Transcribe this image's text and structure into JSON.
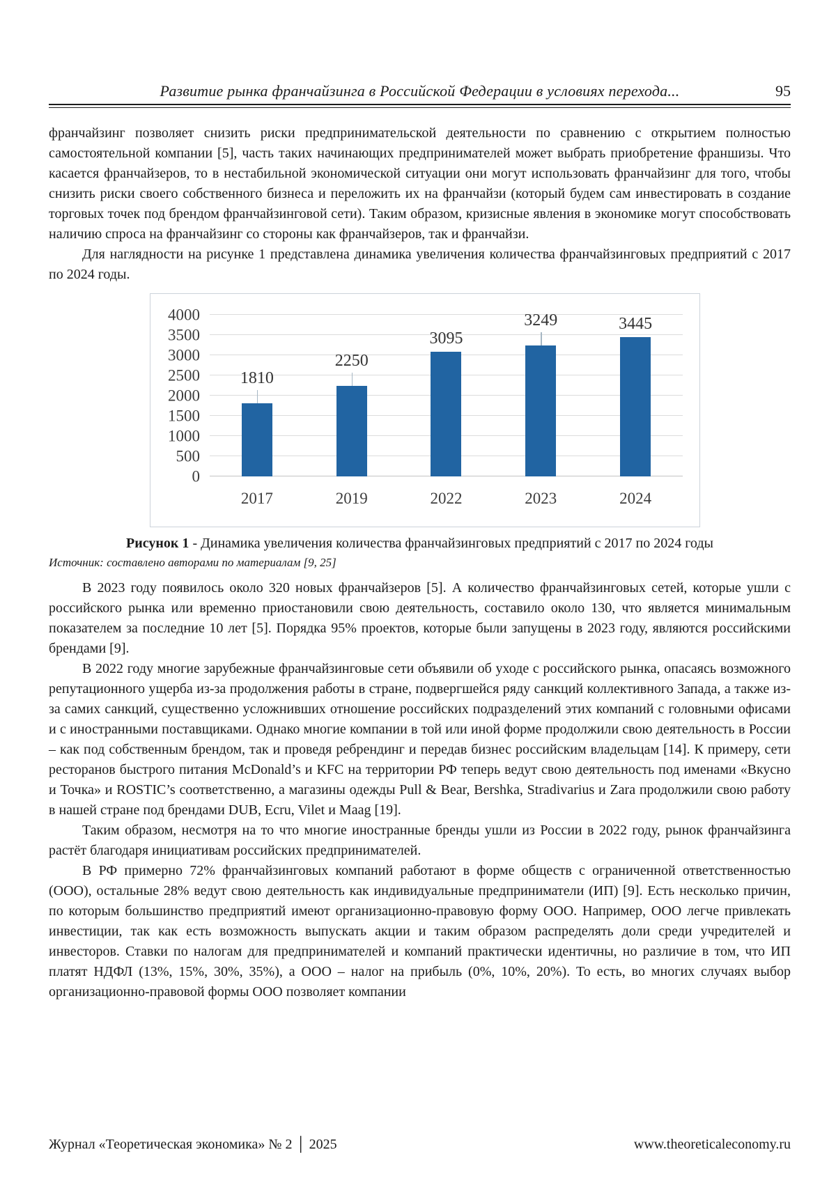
{
  "header": {
    "title": "Развитие рынка франчайзинга в Российской Федерации в условиях перехода...",
    "page_number": "95"
  },
  "paragraphs_before": [
    {
      "indent": false,
      "text": "франчайзинг позволяет снизить риски предпринимательской деятельности по сравнению с открытием полностью самостоятельной компании [5], часть таких начинающих предпринимателей может выбрать приобретение франшизы. Что касается франчайзеров, то в нестабильной экономической ситуации они могут использовать франчайзинг для того, чтобы снизить риски своего собственного бизнеса и переложить их на франчайзи (который будем сам инвестировать в создание торговых точек под брендом франчайзинговой сети). Таким образом, кризисные явления в экономике могут способствовать наличию спроса на франчайзинг со стороны как франчайзеров, так и франчайзи."
    },
    {
      "indent": true,
      "text": "Для наглядности на рисунке 1 представлена динамика увеличения количества франчайзинговых предприятий с 2017 по 2024 годы."
    }
  ],
  "figure": {
    "caption_label": "Рисунок 1",
    "caption_text": " - Динамика увеличения количества франчайзинговых предприятий с 2017 по 2024 годы",
    "source": "Источник: составлено авторами по материалам [9, 25]"
  },
  "chart_data": {
    "type": "bar",
    "categories": [
      "2017",
      "2019",
      "2022",
      "2023",
      "2024"
    ],
    "values": [
      1810,
      2250,
      3095,
      3249,
      3445
    ],
    "leader_lines": [
      true,
      true,
      false,
      true,
      false
    ],
    "title": "",
    "xlabel": "",
    "ylabel": "",
    "ylim": [
      0,
      4000
    ],
    "ytick_step": 500,
    "bar_color": "#2164A2",
    "grid": true,
    "legend": false
  },
  "paragraphs_after": [
    {
      "indent": true,
      "text": "В 2023 году появилось около 320 новых франчайзеров [5]. А количество франчайзинговых сетей, которые ушли с российского рынка или временно приостановили свою деятельность, составило около 130, что является минимальным показателем за последние 10 лет [5]. Порядка 95% проектов, которые были запущены в 2023 году, являются российскими брендами [9]."
    },
    {
      "indent": true,
      "text": "В 2022 году многие зарубежные франчайзинговые сети объявили об уходе с российского рынка, опасаясь возможного репутационного ущерба из-за продолжения работы в стране, подвергшейся ряду санкций коллективного Запада, а также из-за самих санкций, существенно усложнивших отношение российских подразделений этих компаний с головными офисами и с иностранными поставщиками. Однако многие компании в той или иной форме продолжили свою деятельность в России – как под собственным брендом, так и проведя ребрендинг и передав бизнес российским владельцам [14]. К примеру, сети ресторанов быстрого питания McDonald’s и KFC на территории РФ теперь ведут свою деятельность под именами «Вкусно и Точка» и ROSTIC’s соответственно, а магазины одежды Pull & Bear, Bershka, Stradivarius и Zara продолжили свою работу в нашей стране под брендами DUB, Ecru, Vilet и Maag [19]."
    },
    {
      "indent": true,
      "text": "Таким образом, несмотря на то что многие иностранные бренды ушли из России в 2022 году, рынок франчайзинга растёт благодаря инициативам российских предпринимателей."
    },
    {
      "indent": true,
      "text": "В РФ примерно 72% франчайзинговых компаний работают в форме обществ с ограниченной ответственностью (ООО), остальные 28% ведут свою деятельность как индивидуальные предприниматели (ИП) [9]. Есть несколько причин, по которым большинство предприятий имеют организационно-правовую форму ООО. Например, ООО легче привлекать инвестиции, так как есть возможность выпускать акции и таким образом распределять доли среди учредителей и инвесторов. Ставки по налогам для предпринимателей и компаний практически идентичны, но различие в том, что ИП платят НДФЛ (13%, 15%, 30%, 35%), а ООО – налог на прибыль (0%, 10%, 20%). То есть, во многих случаях выбор организационно-правовой формы ООО позволяет компании"
    }
  ],
  "footer": {
    "left": "Журнал «Теоретическая экономика» № 2 │ 2025",
    "right": "www.theoreticaleconomy.ru"
  }
}
